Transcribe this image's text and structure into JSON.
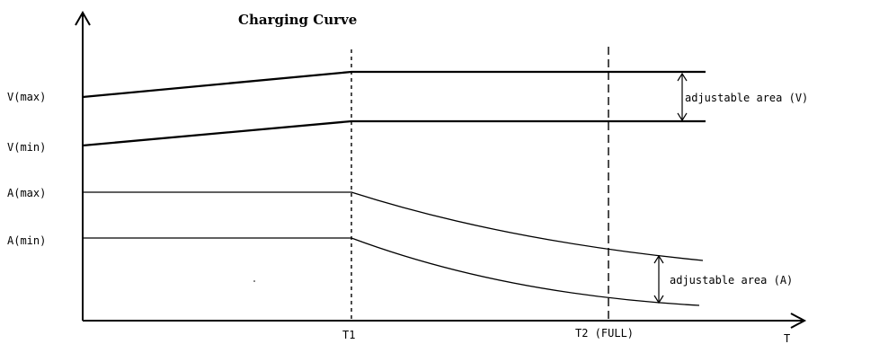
{
  "chart_data": {
    "type": "line",
    "title": "Charging Curve",
    "xlabel": "T",
    "ylabel": "",
    "y_tick_labels": [
      "V(max)",
      "V(min)",
      "A(max)",
      "A(min)"
    ],
    "x_markers": [
      {
        "name": "T1",
        "label": "T1"
      },
      {
        "name": "T2",
        "label": "T2 (FULL)"
      }
    ],
    "series": [
      {
        "name": "V(max)",
        "phase1": "rising",
        "phase2": "constant"
      },
      {
        "name": "V(min)",
        "phase1": "rising",
        "phase2": "constant"
      },
      {
        "name": "A(max)",
        "phase1": "constant",
        "phase2": "decaying"
      },
      {
        "name": "A(min)",
        "phase1": "constant",
        "phase2": "decaying"
      }
    ],
    "annotations": [
      {
        "label": "adjustable area (V)",
        "between": [
          "V(max)",
          "V(min)"
        ]
      },
      {
        "label": "adjustable area (A)",
        "between": [
          "A(max)",
          "A(min)"
        ]
      }
    ],
    "grid": false,
    "legend": "none"
  }
}
